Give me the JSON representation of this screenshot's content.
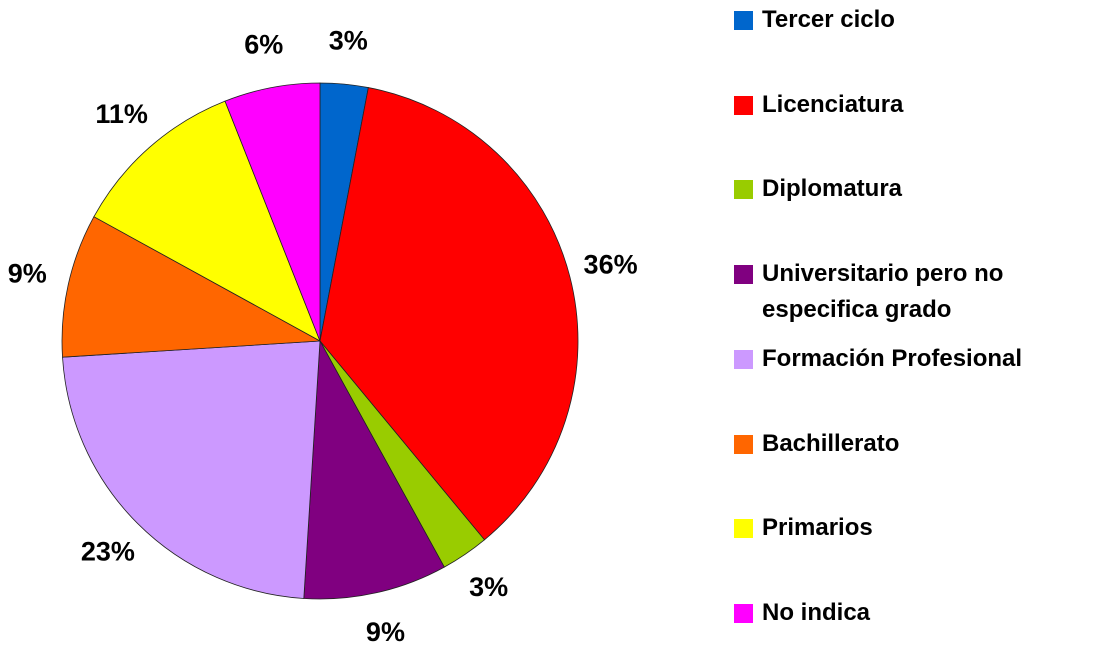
{
  "chart_data": {
    "type": "pie",
    "categories": [
      "Tercer ciclo",
      "Licenciatura",
      "Diplomatura",
      "Universitario pero no especifica grado",
      "Formación Profesional",
      "Bachillerato",
      "Primarios",
      "No indica"
    ],
    "values": [
      3,
      36,
      3,
      9,
      23,
      9,
      11,
      6
    ],
    "value_labels": [
      "3%",
      "36%",
      "3%",
      "9%",
      "23%",
      "9%",
      "11%",
      "6%"
    ],
    "colors": [
      "#0066cc",
      "#ff0000",
      "#99cc00",
      "#800080",
      "#cc99ff",
      "#ff6600",
      "#ffff00",
      "#ff00ff"
    ],
    "legend": "right"
  }
}
